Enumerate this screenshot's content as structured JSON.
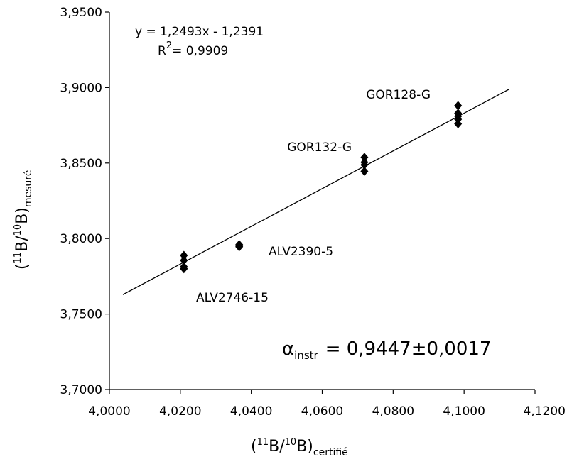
{
  "chart_data": {
    "type": "scatter",
    "title": "",
    "xlabel": {
      "prefix": "(",
      "sup1": "11",
      "mid": "B/",
      "sup2": "10",
      "end": "B)",
      "sub": "certifié"
    },
    "ylabel": {
      "prefix": "(",
      "sup1": "11",
      "mid": "B/",
      "sup2": "10",
      "end": "B)",
      "sub": "mesuré"
    },
    "xlim": [
      4.0,
      4.12
    ],
    "ylim": [
      3.7,
      3.95
    ],
    "x_ticks": [
      4.0,
      4.02,
      4.04,
      4.06,
      4.08,
      4.1,
      4.12
    ],
    "y_ticks": [
      3.7,
      3.75,
      3.8,
      3.85,
      3.9,
      3.95
    ],
    "x_tick_labels": [
      "4,0000",
      "4,0200",
      "4,0400",
      "4,0600",
      "4,0800",
      "4,1000",
      "4,1200"
    ],
    "y_tick_labels": [
      "3,7000",
      "3,7500",
      "3,8000",
      "3,8500",
      "3,9000",
      "3,9500"
    ],
    "grid": false,
    "marker_color": "#000000",
    "series": [
      {
        "points": [
          {
            "x": 4.021,
            "y": 3.7888
          },
          {
            "x": 4.021,
            "y": 3.7855
          },
          {
            "x": 4.021,
            "y": 3.7813
          },
          {
            "x": 4.021,
            "y": 3.78
          },
          {
            "x": 4.0366,
            "y": 3.796
          },
          {
            "x": 4.0366,
            "y": 3.795
          },
          {
            "x": 4.0366,
            "y": 3.7945
          },
          {
            "x": 4.0719,
            "y": 3.8538
          },
          {
            "x": 4.0719,
            "y": 3.8505
          },
          {
            "x": 4.0719,
            "y": 3.8488
          },
          {
            "x": 4.0719,
            "y": 3.8445
          },
          {
            "x": 4.0983,
            "y": 3.888
          },
          {
            "x": 4.0983,
            "y": 3.883
          },
          {
            "x": 4.0983,
            "y": 3.881
          },
          {
            "x": 4.0983,
            "y": 3.879
          },
          {
            "x": 4.0983,
            "y": 3.876
          }
        ]
      }
    ],
    "trendline": {
      "slope": 1.2493,
      "intercept": -1.2391,
      "x_range": [
        4.0038,
        4.1127
      ]
    },
    "equation": "y = 1,2493x - 1,2391",
    "r2": {
      "label": "R",
      "exp": "2",
      "value": "= 0,9909"
    },
    "annotations": [
      {
        "text": "GOR128-G",
        "anchor_x": 4.0983,
        "anchor_y": 3.9
      },
      {
        "text": "GOR132-G",
        "anchor_x": 4.0719,
        "anchor_y": 3.858
      },
      {
        "text": "ALV2390-5",
        "anchor_x": 4.0366,
        "anchor_y": 3.79
      },
      {
        "text": "ALV2746-15",
        "anchor_x": 4.021,
        "anchor_y": 3.774
      }
    ],
    "alpha_note": {
      "symbol": "α",
      "sub": "instr",
      "value": "= 0,9447±0,0017"
    }
  }
}
